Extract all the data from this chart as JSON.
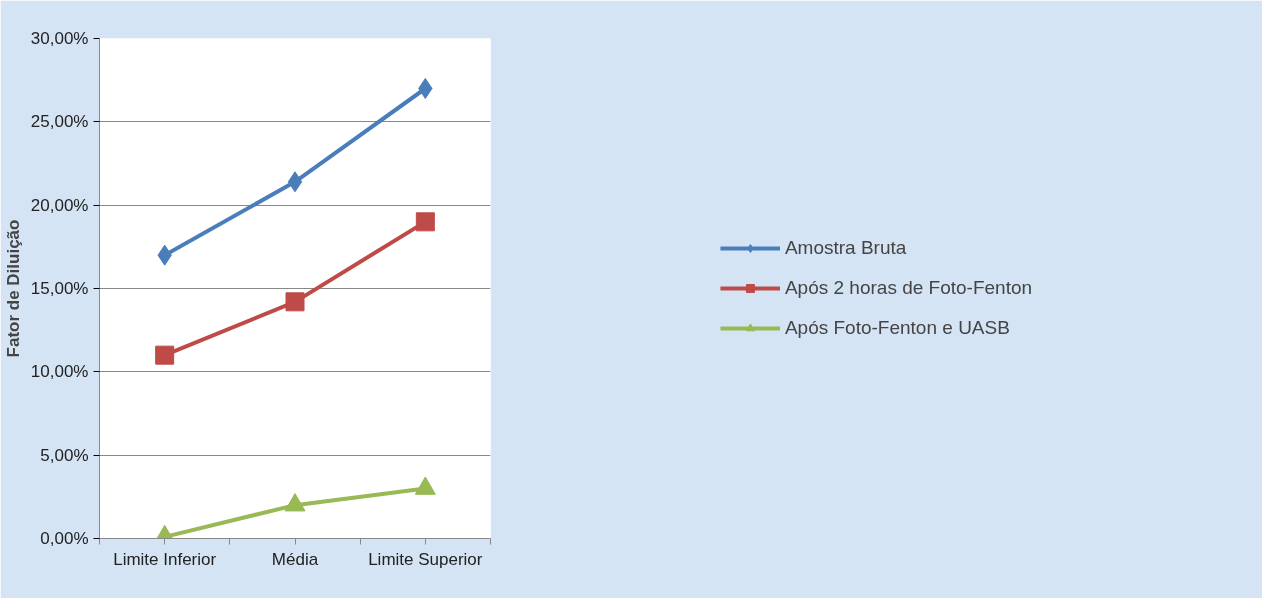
{
  "chart_data": {
    "type": "line",
    "ylabel": "Fator de Diluição",
    "categories": [
      "Limite Inferior",
      "Média",
      "Limite Superior"
    ],
    "series": [
      {
        "name": "Amostra Bruta",
        "color": "#4a7ebb",
        "marker": "diamond",
        "values": [
          17.0,
          21.4,
          27.0
        ]
      },
      {
        "name": "Após 2 horas de Foto-Fenton",
        "color": "#be4b48",
        "marker": "square",
        "values": [
          11.0,
          14.2,
          19.0
        ]
      },
      {
        "name": "Após Foto-Fenton e UASB",
        "color": "#98b954",
        "marker": "triangle",
        "values": [
          0.1,
          2.0,
          3.0
        ]
      }
    ],
    "ylim": [
      0,
      30
    ],
    "yticks": [
      {
        "value": 0,
        "label": "0,00%"
      },
      {
        "value": 5,
        "label": "5,00%"
      },
      {
        "value": 10,
        "label": "10,00%"
      },
      {
        "value": 15,
        "label": "15,00%"
      },
      {
        "value": 20,
        "label": "20,00%"
      },
      {
        "value": 25,
        "label": "25,00%"
      },
      {
        "value": 30,
        "label": "30,00%"
      }
    ],
    "grid": "y",
    "legend": "right"
  }
}
